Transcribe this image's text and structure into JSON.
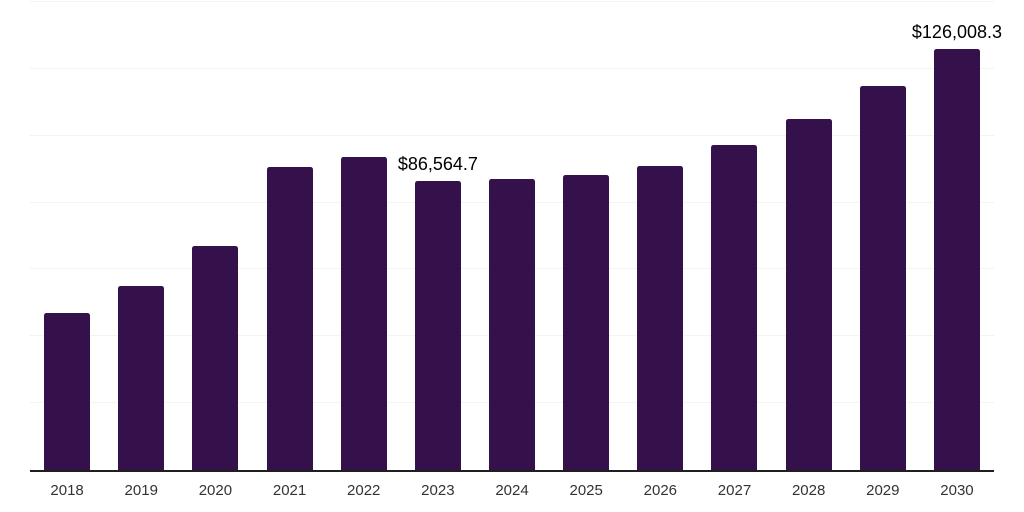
{
  "chart_data": {
    "type": "bar",
    "title": "",
    "xlabel": "",
    "ylabel": "",
    "categories": [
      "2018",
      "2019",
      "2020",
      "2021",
      "2022",
      "2023",
      "2024",
      "2025",
      "2026",
      "2027",
      "2028",
      "2029",
      "2030"
    ],
    "values": [
      47000,
      55000,
      67100,
      90700,
      93500,
      86564.7,
      87100,
      88400,
      91000,
      97300,
      104900,
      114800,
      126008.3
    ],
    "data_labels": {
      "2023": "$86,564.7",
      "2030": "$126,008.3"
    },
    "ylim": [
      0,
      140000
    ],
    "gridline_interval": 20000,
    "grid": true,
    "legend_position": "none",
    "colors": {
      "bar": "#34114B",
      "gridline": "#f3f3f3",
      "axis_line": "#1f1f1f",
      "tick_label": "#333333",
      "data_label": "#000000",
      "background": "#ffffff"
    }
  }
}
